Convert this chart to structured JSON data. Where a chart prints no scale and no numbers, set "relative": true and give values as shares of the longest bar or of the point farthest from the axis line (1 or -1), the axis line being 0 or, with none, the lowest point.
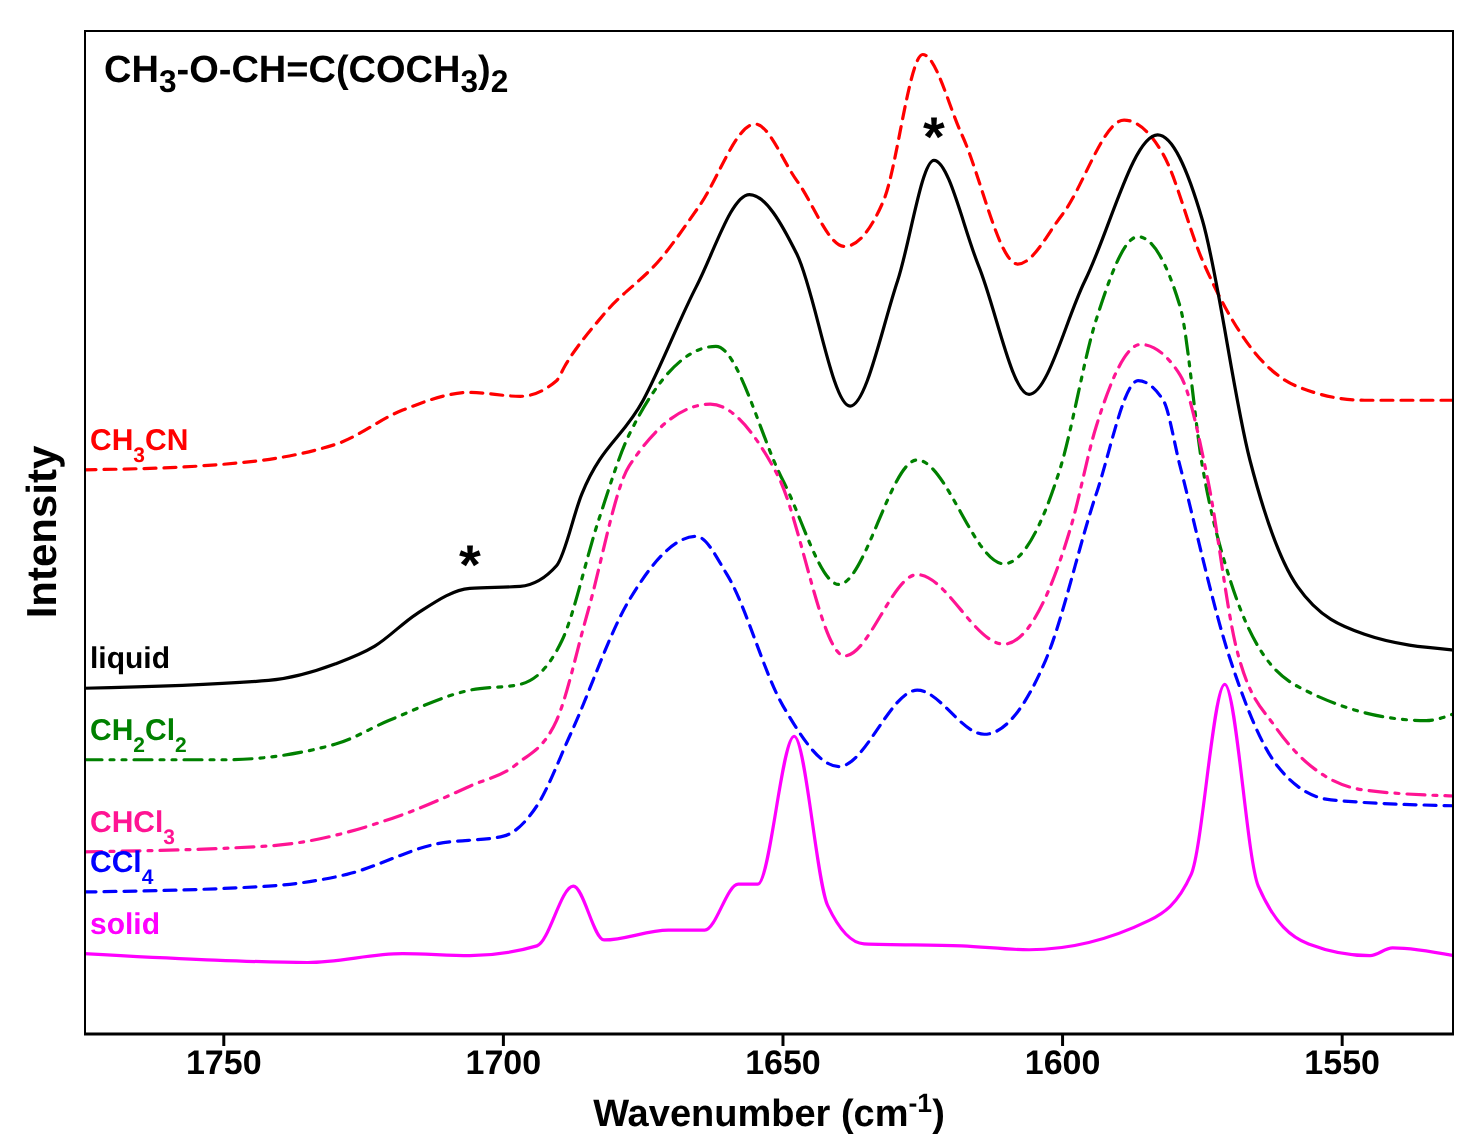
{
  "chart_data": {
    "type": "line",
    "title": "CH$_{3}$-O-CH=C(COCH$_{3}$)$_{2}$",
    "xlabel": "Wavenumber (cm$^{-1}$)",
    "ylabel": "Intensity",
    "relative": true,
    "xlim": [
      1775,
      1530
    ],
    "xticks": [
      1750,
      1700,
      1650,
      1600,
      1550
    ],
    "marker": "none",
    "series": [
      {
        "name": "CH$_{3}$CN",
        "color": "#ff0000",
        "line_style": "dashed",
        "x": [
          1775,
          1754,
          1730,
          1718,
          1706,
          1697,
          1690.5,
          1689,
          1682,
          1671.5,
          1665,
          1655,
          1647.5,
          1639,
          1632,
          1625,
          1618,
          1608,
          1600,
          1589,
          1582,
          1575,
          1566.5,
          1558,
          1546,
          1530
        ],
        "values": [
          0.576,
          0.58,
          0.602,
          0.637,
          0.655,
          0.651,
          0.667,
          0.682,
          0.735,
          0.794,
          0.845,
          0.929,
          0.871,
          0.804,
          0.851,
          1.0,
          0.918,
          0.786,
          0.837,
          0.933,
          0.898,
          0.79,
          0.702,
          0.661,
          0.647,
          0.647
        ]
      },
      {
        "name": "liquid",
        "color": "#000000",
        "line_style": "solid",
        "x": [
          1775,
          1742,
          1730,
          1723,
          1715.5,
          1706,
          1697,
          1690.5,
          1686,
          1675,
          1665.5,
          1656,
          1647.5,
          1638,
          1629.5,
          1623,
          1615,
          1606,
          1596,
          1583,
          1575,
          1566.5,
          1558,
          1546,
          1530
        ],
        "values": [
          0.353,
          0.361,
          0.378,
          0.396,
          0.429,
          0.455,
          0.457,
          0.478,
          0.551,
          0.647,
          0.763,
          0.857,
          0.796,
          0.641,
          0.769,
          0.892,
          0.784,
          0.653,
          0.769,
          0.918,
          0.831,
          0.586,
          0.457,
          0.408,
          0.392
        ]
      },
      {
        "name": "CH$_{2}$Cl$_{2}$",
        "color": "#008000",
        "line_style": "dashdotdot",
        "x": [
          1775,
          1750,
          1730,
          1720.5,
          1706,
          1697,
          1689.5,
          1683,
          1677.5,
          1662,
          1650,
          1640,
          1626,
          1610.5,
          1600.5,
          1594,
          1586.5,
          1579,
          1575,
          1570,
          1558,
          1535,
          1530
        ],
        "values": [
          0.28,
          0.28,
          0.296,
          0.32,
          0.351,
          0.357,
          0.402,
          0.524,
          0.612,
          0.702,
          0.565,
          0.459,
          0.586,
          0.48,
          0.576,
          0.729,
          0.814,
          0.743,
          0.58,
          0.463,
          0.355,
          0.32,
          0.327
        ]
      },
      {
        "name": "CHCl$_{3}$",
        "color": "#ff1493",
        "line_style": "dashdot",
        "x": [
          1775,
          1742,
          1718,
          1706,
          1697.5,
          1690.5,
          1685,
          1677.5,
          1663,
          1651,
          1639,
          1626,
          1610.5,
          1598.5,
          1594,
          1586,
          1579,
          1574,
          1569,
          1562,
          1546,
          1530
        ],
        "values": [
          0.186,
          0.192,
          0.224,
          0.253,
          0.276,
          0.32,
          0.429,
          0.58,
          0.643,
          0.571,
          0.386,
          0.469,
          0.398,
          0.518,
          0.62,
          0.704,
          0.673,
          0.565,
          0.396,
          0.314,
          0.249,
          0.243
        ]
      },
      {
        "name": "CCl$_{4}$",
        "color": "#0000ff",
        "line_style": "dashed",
        "x": [
          1775,
          1742,
          1728,
          1712,
          1700,
          1694,
          1688,
          1677.5,
          1665.5,
          1660,
          1650,
          1640,
          1626,
          1614,
          1603,
          1594,
          1586.5,
          1582,
          1579,
          1570,
          1561.5,
          1552,
          1530
        ],
        "values": [
          0.145,
          0.151,
          0.163,
          0.194,
          0.202,
          0.233,
          0.306,
          0.443,
          0.508,
          0.469,
          0.335,
          0.273,
          0.351,
          0.306,
          0.382,
          0.551,
          0.667,
          0.647,
          0.58,
          0.382,
          0.273,
          0.239,
          0.233
        ]
      },
      {
        "name": "solid",
        "color": "#ff00ff",
        "line_style": "solid",
        "x": [
          1775,
          1754,
          1735,
          1718,
          1706,
          1694,
          1687.5,
          1682,
          1670.5,
          1664,
          1658,
          1654.5,
          1648,
          1642,
          1635.5,
          1618,
          1606,
          1584.5,
          1577,
          1571,
          1565,
          1556,
          1545,
          1541,
          1530
        ],
        "values": [
          0.082,
          0.076,
          0.073,
          0.082,
          0.08,
          0.09,
          0.151,
          0.096,
          0.106,
          0.106,
          0.153,
          0.153,
          0.304,
          0.131,
          0.092,
          0.09,
          0.086,
          0.116,
          0.163,
          0.357,
          0.151,
          0.092,
          0.08,
          0.088,
          0.08
        ]
      }
    ],
    "annotations": [
      {
        "text": "*",
        "x": 1706,
        "y": 0.455
      },
      {
        "text": "*",
        "x": 1623,
        "y": 0.892
      }
    ]
  }
}
